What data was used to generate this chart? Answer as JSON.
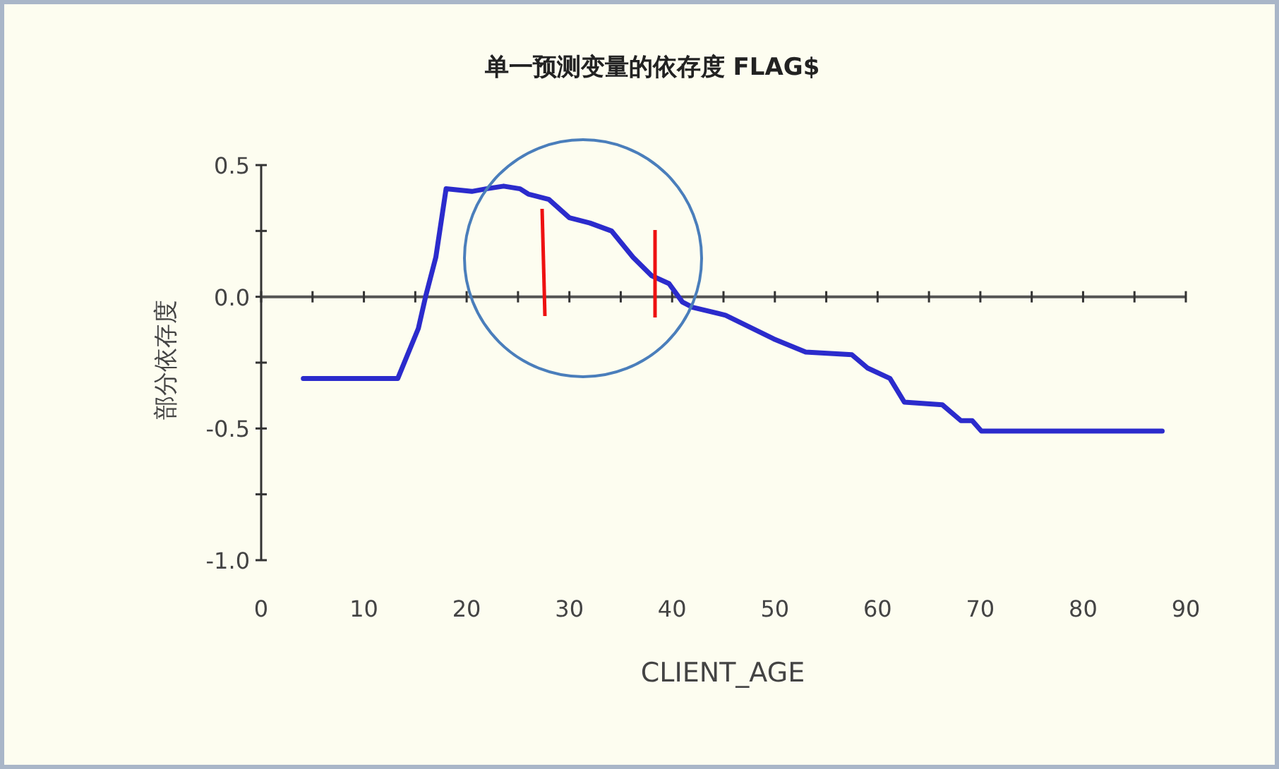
{
  "chart_data": {
    "type": "line",
    "title": "单一预测变量的依存度 FLAG$",
    "xlabel": "CLIENT_AGE",
    "ylabel": "部分依存度",
    "x": [
      4.1,
      13.3,
      15.3,
      16,
      17,
      18,
      20.5,
      21.9,
      23.6,
      25.2,
      26,
      28,
      30,
      32,
      34.1,
      36.2,
      38,
      39.7,
      41,
      42,
      45.2,
      49.9,
      53,
      57.5,
      59,
      61.2,
      62.6,
      66.3,
      68.1,
      69.2,
      70.1,
      87.7
    ],
    "series": [
      {
        "color": "#2b2bcc",
        "values": [
          -0.31,
          -0.31,
          -0.12,
          0,
          0.15,
          0.41,
          0.4,
          0.41,
          0.42,
          0.41,
          0.39,
          0.37,
          0.3,
          0.28,
          0.25,
          0.15,
          0.08,
          0.05,
          -0.02,
          -0.04,
          -0.07,
          -0.16,
          -0.21,
          -0.22,
          -0.27,
          -0.31,
          -0.4,
          -0.41,
          -0.47,
          -0.47,
          -0.51,
          -0.51
        ]
      }
    ],
    "xlim": [
      0,
      90
    ],
    "ylim": [
      -1,
      0.5
    ],
    "xticks": [
      0,
      {
        "value": 5,
        "label": null
      },
      10,
      {
        "value": 15,
        "label": null
      },
      20,
      {
        "value": 25,
        "label": null
      },
      30,
      {
        "value": 35,
        "label": null
      },
      40,
      {
        "value": 45,
        "label": null
      },
      50,
      {
        "value": 55,
        "label": null
      },
      60,
      {
        "value": 65,
        "label": null
      },
      70,
      {
        "value": 75,
        "label": null
      },
      80,
      {
        "value": 85,
        "label": null
      },
      90
    ],
    "yticks": [
      {
        "value": -1,
        "label": "-1.0"
      },
      {
        "value": -0.75,
        "label": null
      },
      {
        "value": -0.5,
        "label": "-0.5"
      },
      {
        "value": -0.25,
        "label": null
      },
      {
        "value": 0,
        "label": "0.0"
      },
      {
        "value": 0.25,
        "label": null
      },
      {
        "value": 0.5,
        "label": "0.5"
      }
    ],
    "line_style": "solid",
    "marker": "none"
  }
}
